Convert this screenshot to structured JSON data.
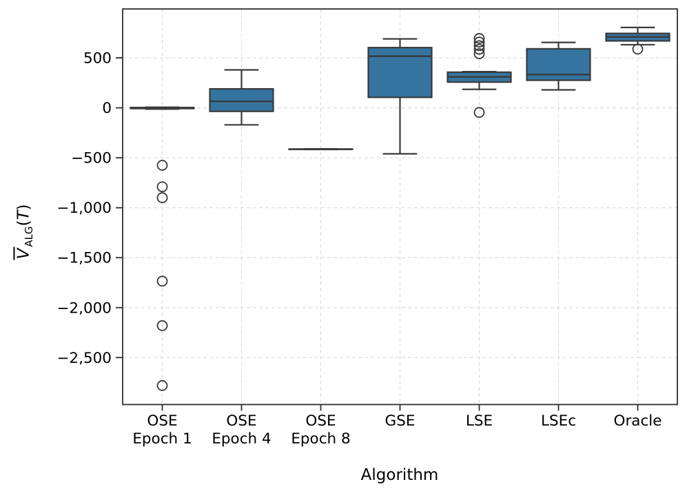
{
  "colors": {
    "box_fill": "#35749F",
    "box_edge": "#3A3A3A",
    "whisker": "#3A3A3A",
    "median": "#3A3A3A",
    "outlier_edge": "#3A3A3A",
    "spine": "#2E2E2E",
    "grid": "#DBDBDB",
    "background": "#FFFFFF",
    "text": "#000000"
  },
  "chart_data": {
    "type": "boxplot",
    "title": "",
    "xlabel": "Algorithm",
    "ylabel": "V̄_ALG(T)",
    "ylabel_parts": {
      "variable": "V",
      "subscript": "ALG",
      "open_paren": "(",
      "argument": "T",
      "close_paren": ")"
    },
    "ylim": [
      -2970,
      990
    ],
    "grid": true,
    "legend": "none",
    "yticks": [
      {
        "value": 500,
        "label": "500"
      },
      {
        "value": 0,
        "label": "0"
      },
      {
        "value": -500,
        "label": "−500"
      },
      {
        "value": -1000,
        "label": "−1,000"
      },
      {
        "value": -1500,
        "label": "−1,500"
      },
      {
        "value": -2000,
        "label": "−2,000"
      },
      {
        "value": -2500,
        "label": "−2,500"
      }
    ],
    "categories": [
      "OSE Epoch 1",
      "OSE Epoch 4",
      "OSE Epoch 8",
      "GSE",
      "LSE",
      "LSEc",
      "Oracle"
    ],
    "boxes": [
      {
        "label": "OSE Epoch 1",
        "tick_line1": "OSE",
        "tick_line2": "Epoch 1",
        "whisker_low": -12,
        "q1": -7,
        "median": -1,
        "q3": 3,
        "whisker_high": 6,
        "outliers": [
          -575,
          -790,
          -900,
          -1735,
          -2180,
          -2780
        ]
      },
      {
        "label": "OSE Epoch 4",
        "tick_line1": "OSE",
        "tick_line2": "Epoch 4",
        "whisker_low": -170,
        "q1": -35,
        "median": 65,
        "q3": 190,
        "whisker_high": 380,
        "outliers": []
      },
      {
        "label": "OSE Epoch 8",
        "tick_line1": "OSE",
        "tick_line2": "Epoch 8",
        "whisker_low": -416,
        "q1": -415,
        "median": -414,
        "q3": -412,
        "whisker_high": -411,
        "outliers": []
      },
      {
        "label": "GSE",
        "tick_line1": "GSE",
        "tick_line2": "",
        "whisker_low": -460,
        "q1": 105,
        "median": 517,
        "q3": 603,
        "whisker_high": 690,
        "outliers": []
      },
      {
        "label": "LSE",
        "tick_line1": "LSE",
        "tick_line2": "",
        "whisker_low": 185,
        "q1": 258,
        "median": 310,
        "q3": 357,
        "whisker_high": 362,
        "outliers": [
          695,
          658,
          622,
          586,
          542,
          -46
        ]
      },
      {
        "label": "LSEc",
        "tick_line1": "LSEc",
        "tick_line2": "",
        "whisker_low": 180,
        "q1": 276,
        "median": 334,
        "q3": 591,
        "whisker_high": 655,
        "outliers": []
      },
      {
        "label": "Oracle",
        "tick_line1": "Oracle",
        "tick_line2": "",
        "whisker_low": 632,
        "q1": 670,
        "median": 710,
        "q3": 745,
        "whisker_high": 805,
        "outliers": [
          588
        ]
      }
    ]
  }
}
